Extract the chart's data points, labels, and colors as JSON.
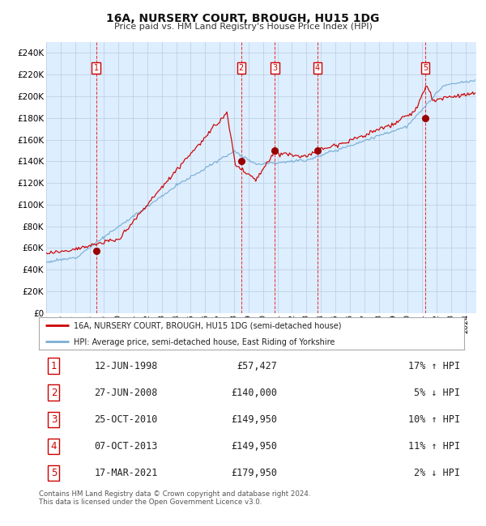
{
  "title": "16A, NURSERY COURT, BROUGH, HU15 1DG",
  "subtitle": "Price paid vs. HM Land Registry's House Price Index (HPI)",
  "plot_bg_color": "#ddeeff",
  "ylim": [
    0,
    250000
  ],
  "yticks": [
    0,
    20000,
    40000,
    60000,
    80000,
    100000,
    120000,
    140000,
    160000,
    180000,
    200000,
    220000,
    240000
  ],
  "ytick_labels": [
    "£0",
    "£20K",
    "£40K",
    "£60K",
    "£80K",
    "£100K",
    "£120K",
    "£140K",
    "£160K",
    "£180K",
    "£200K",
    "£220K",
    "£240K"
  ],
  "xlim_start": 1995.0,
  "xlim_end": 2024.75,
  "hpi_color": "#7bafd4",
  "price_color": "#cc0000",
  "sale_marker_color": "#990000",
  "dashed_line_color": "#ee3333",
  "legend_label_price": "16A, NURSERY COURT, BROUGH, HU15 1DG (semi-detached house)",
  "legend_label_hpi": "HPI: Average price, semi-detached house, East Riding of Yorkshire",
  "sales": [
    {
      "num": 1,
      "date": "12-JUN-1998",
      "price": 57427,
      "pct": "17%",
      "dir": "↑",
      "year": 1998.45
    },
    {
      "num": 2,
      "date": "27-JUN-2008",
      "price": 140000,
      "pct": "5%",
      "dir": "↓",
      "year": 2008.49
    },
    {
      "num": 3,
      "date": "25-OCT-2010",
      "price": 149950,
      "pct": "10%",
      "dir": "↑",
      "year": 2010.82
    },
    {
      "num": 4,
      "date": "07-OCT-2013",
      "price": 149950,
      "pct": "11%",
      "dir": "↑",
      "year": 2013.77
    },
    {
      "num": 5,
      "date": "17-MAR-2021",
      "price": 179950,
      "pct": "2%",
      "dir": "↓",
      "year": 2021.21
    }
  ],
  "footer1": "Contains HM Land Registry data © Crown copyright and database right 2024.",
  "footer2": "This data is licensed under the Open Government Licence v3.0.",
  "table_rows": [
    [
      "1",
      "12-JUN-1998",
      "£57,427",
      "17% ↑ HPI"
    ],
    [
      "2",
      "27-JUN-2008",
      "£140,000",
      "5% ↓ HPI"
    ],
    [
      "3",
      "25-OCT-2010",
      "£149,950",
      "10% ↑ HPI"
    ],
    [
      "4",
      "07-OCT-2013",
      "£149,950",
      "11% ↑ HPI"
    ],
    [
      "5",
      "17-MAR-2021",
      "£179,950",
      "2% ↓ HPI"
    ]
  ]
}
